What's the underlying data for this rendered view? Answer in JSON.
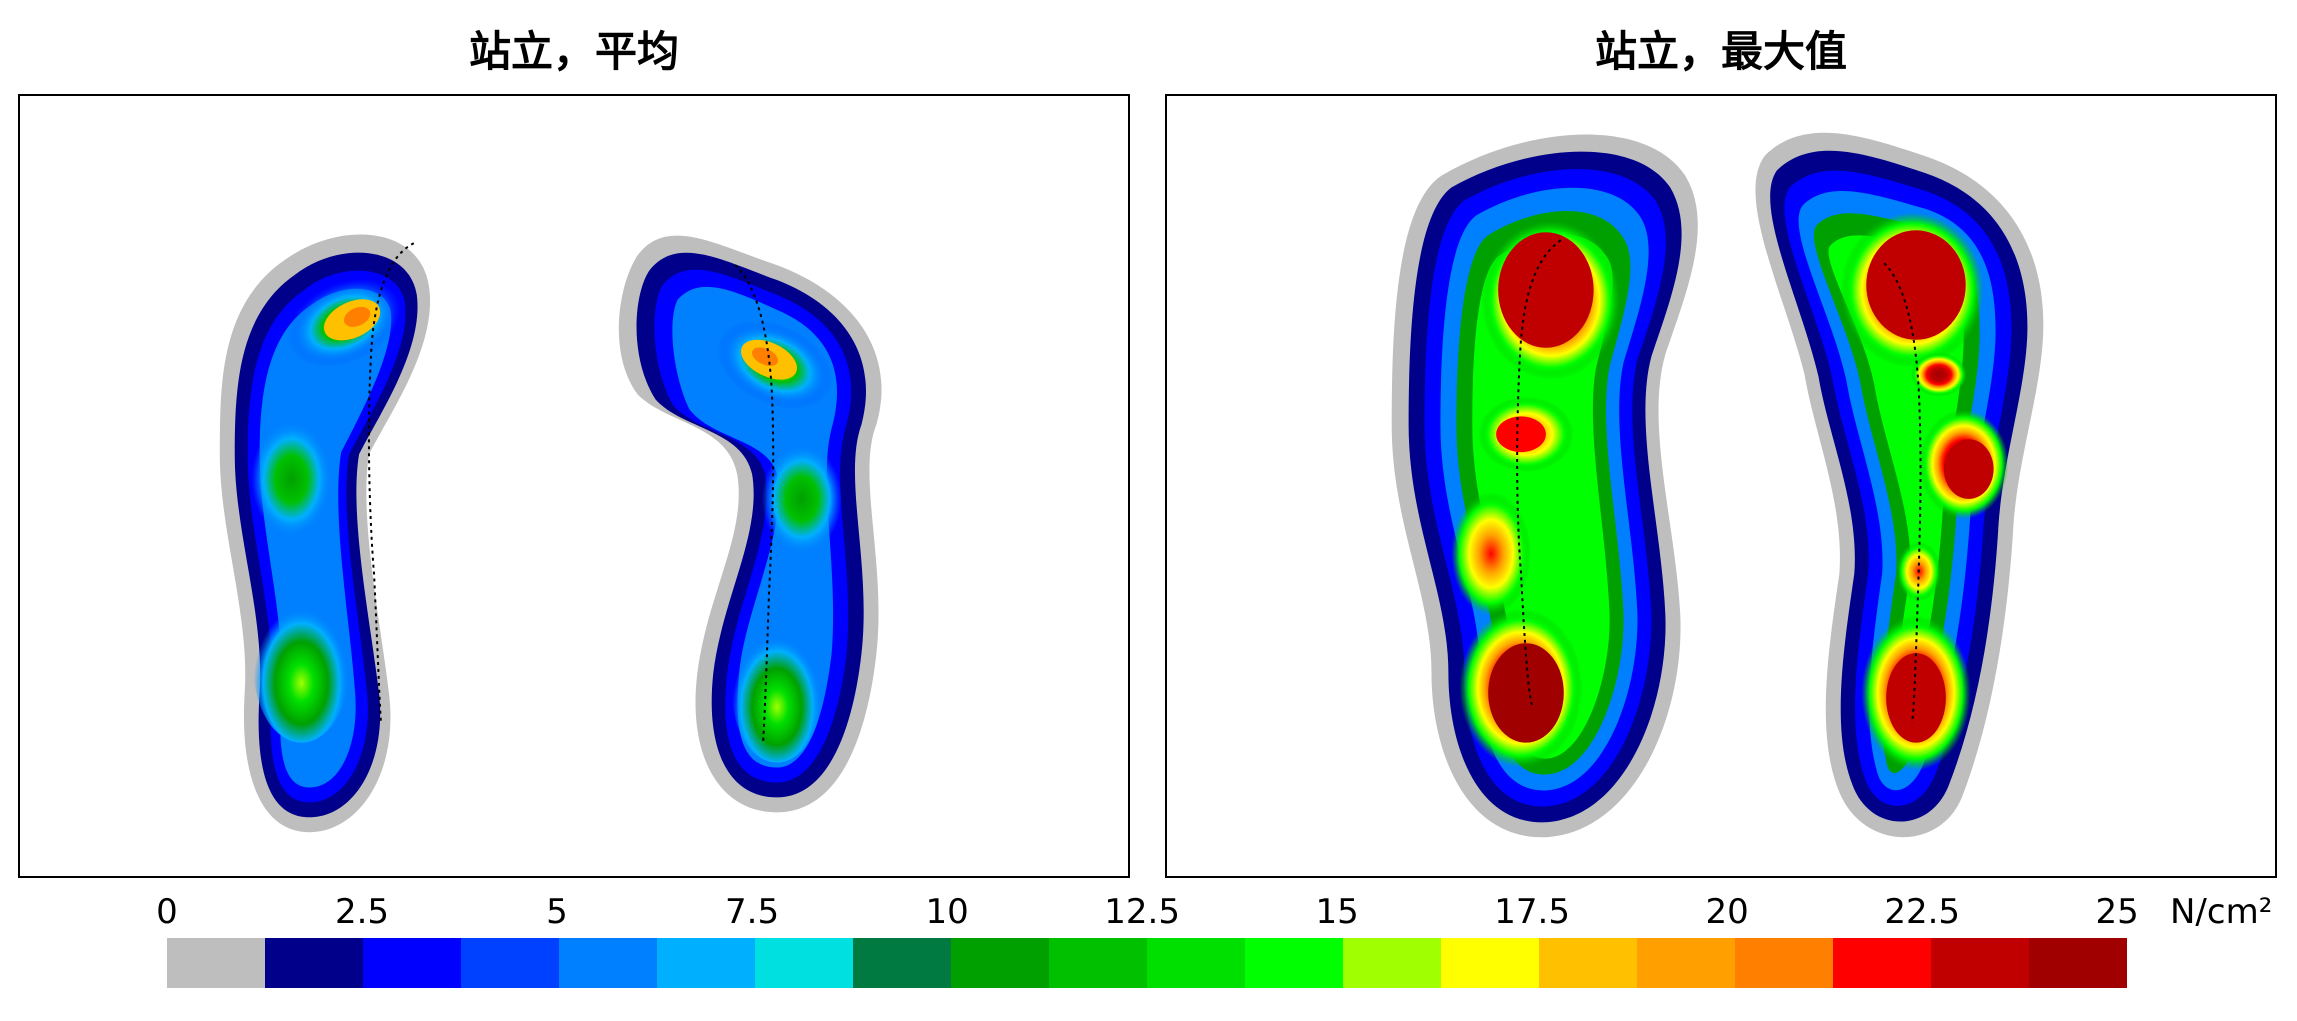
{
  "chart_data": [
    {
      "type": "heatmap",
      "title": "站立，平均",
      "description_text": "",
      "feet": [
        {
          "side": "left",
          "peak_regions": [
            {
              "region": "forefoot",
              "value": 17.5
            },
            {
              "region": "midfoot",
              "value": 12.5
            },
            {
              "region": "heel",
              "value": 15
            }
          ]
        },
        {
          "side": "right",
          "peak_regions": [
            {
              "region": "forefoot",
              "value": 17.5
            },
            {
              "region": "midfoot",
              "value": 12.5
            },
            {
              "region": "heel",
              "value": 15
            }
          ]
        }
      ]
    },
    {
      "type": "heatmap",
      "title": "站立，最大值",
      "feet": [
        {
          "side": "left",
          "peak_regions": [
            {
              "region": "forefoot",
              "value": 25
            },
            {
              "region": "toe",
              "value": 23.75
            },
            {
              "region": "midfoot",
              "value": 20
            },
            {
              "region": "heel",
              "value": 25
            }
          ]
        },
        {
          "side": "right",
          "peak_regions": [
            {
              "region": "forefoot",
              "value": 25
            },
            {
              "region": "midfoot",
              "value": 23.75
            },
            {
              "region": "heel",
              "value": 25
            }
          ]
        }
      ]
    }
  ],
  "colorbar": {
    "ticks": [
      "0",
      "2.5",
      "5",
      "7.5",
      "10",
      "12.5",
      "15",
      "17.5",
      "20",
      "22.5",
      "25"
    ],
    "tick_values": [
      0,
      2.5,
      5,
      7.5,
      10,
      12.5,
      15,
      17.5,
      20,
      22.5,
      25
    ],
    "unit": "N/cm²",
    "range": [
      0,
      25
    ],
    "colors": [
      "#bebebe",
      "#00008b",
      "#0000ff",
      "#0040ff",
      "#0080ff",
      "#00b0ff",
      "#00e0e0",
      "#007a40",
      "#00a000",
      "#00c000",
      "#00e000",
      "#00ff00",
      "#a0ff00",
      "#ffff00",
      "#ffc000",
      "#ffa000",
      "#ff8000",
      "#ff0000",
      "#c00000",
      "#a00000"
    ]
  }
}
